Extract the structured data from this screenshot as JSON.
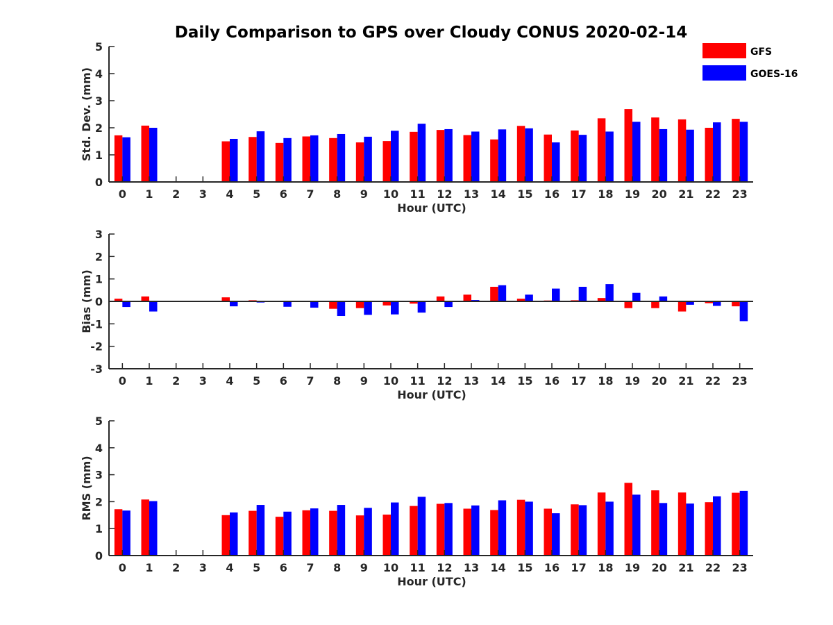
{
  "chart_data": {
    "type": "bar",
    "title": "Daily Comparison to GPS over Cloudy CONUS 2020-02-14",
    "categories": [
      "0",
      "1",
      "2",
      "3",
      "4",
      "5",
      "6",
      "7",
      "8",
      "9",
      "10",
      "11",
      "12",
      "13",
      "14",
      "15",
      "16",
      "17",
      "18",
      "19",
      "20",
      "21",
      "22",
      "23"
    ],
    "legend": {
      "placement": "top-right",
      "entries": [
        "GFS",
        "GOES-16"
      ]
    },
    "colors": {
      "GFS": "#ff0000",
      "GOES-16": "#0000ff",
      "axis": "#262626"
    },
    "subplots": [
      {
        "ylabel": "Std. Dev. (mm)",
        "xlabel": "Hour (UTC)",
        "ylim": [
          0,
          5
        ],
        "yticks": [
          "0",
          "1",
          "2",
          "3",
          "4",
          "5"
        ],
        "series": [
          {
            "name": "GFS",
            "values": [
              1.72,
              2.08,
              null,
              null,
              1.5,
              1.66,
              1.44,
              1.68,
              1.62,
              1.46,
              1.51,
              1.85,
              1.92,
              1.73,
              1.57,
              2.07,
              1.75,
              1.9,
              2.35,
              2.69,
              2.38,
              2.31,
              2.0,
              2.33
            ]
          },
          {
            "name": "GOES-16",
            "values": [
              1.65,
              2.0,
              null,
              null,
              1.59,
              1.87,
              1.62,
              1.72,
              1.77,
              1.67,
              1.89,
              2.15,
              1.95,
              1.86,
              1.94,
              1.98,
              1.46,
              1.74,
              1.86,
              2.22,
              1.95,
              1.93,
              2.2,
              2.22
            ]
          }
        ]
      },
      {
        "ylabel": "Bias (mm)",
        "xlabel": "Hour (UTC)",
        "ylim": [
          -3,
          3
        ],
        "yticks": [
          "-3",
          "-2",
          "-1",
          "0",
          "1",
          "2",
          "3"
        ],
        "series": [
          {
            "name": "GFS",
            "values": [
              0.12,
              0.22,
              null,
              null,
              0.18,
              0.05,
              -0.03,
              0.0,
              -0.33,
              -0.3,
              -0.18,
              -0.1,
              0.22,
              0.3,
              0.65,
              0.12,
              0.04,
              0.05,
              0.15,
              -0.3,
              -0.3,
              -0.45,
              -0.08,
              -0.22
            ]
          },
          {
            "name": "GOES-16",
            "values": [
              -0.25,
              -0.45,
              null,
              null,
              -0.22,
              -0.05,
              -0.24,
              -0.28,
              -0.65,
              -0.6,
              -0.58,
              -0.5,
              -0.25,
              0.06,
              0.72,
              0.3,
              0.57,
              0.65,
              0.77,
              0.38,
              0.22,
              -0.15,
              -0.2,
              -0.88
            ]
          }
        ]
      },
      {
        "ylabel": "RMS (mm)",
        "xlabel": "Hour (UTC)",
        "ylim": [
          0,
          5
        ],
        "yticks": [
          "0",
          "1",
          "2",
          "3",
          "4",
          "5"
        ],
        "series": [
          {
            "name": "GFS",
            "values": [
              1.72,
              2.08,
              null,
              null,
              1.5,
              1.66,
              1.44,
              1.68,
              1.66,
              1.49,
              1.52,
              1.84,
              1.92,
              1.74,
              1.69,
              2.07,
              1.74,
              1.9,
              2.34,
              2.7,
              2.42,
              2.34,
              1.98,
              2.33
            ]
          },
          {
            "name": "GOES-16",
            "values": [
              1.67,
              2.02,
              null,
              null,
              1.6,
              1.88,
              1.63,
              1.75,
              1.88,
              1.77,
              1.97,
              2.18,
              1.95,
              1.86,
              2.05,
              2.0,
              1.57,
              1.87,
              2.0,
              2.26,
              1.95,
              1.93,
              2.2,
              2.4
            ]
          }
        ]
      }
    ]
  }
}
